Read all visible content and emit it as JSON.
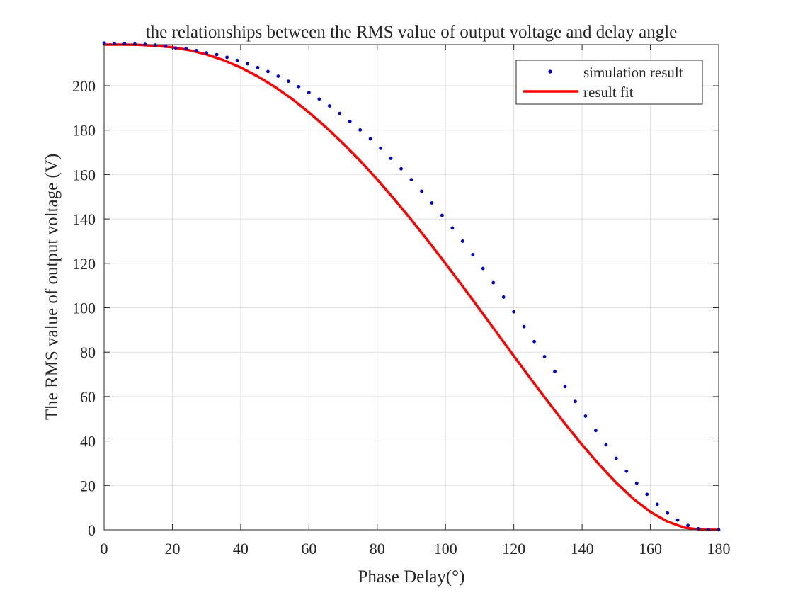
{
  "chart_data": {
    "type": "line",
    "title": "the relationships between the RMS value of output voltage and delay angle",
    "xlabel": "Phase Delay(°)",
    "ylabel": "The RMS value of output voltage (V)",
    "xlim": [
      0,
      180
    ],
    "ylim": [
      0,
      218.5
    ],
    "xticks": [
      0,
      20,
      40,
      60,
      80,
      100,
      120,
      140,
      160,
      180
    ],
    "yticks": [
      0,
      20,
      40,
      60,
      80,
      100,
      120,
      140,
      160,
      180,
      200
    ],
    "grid": true,
    "legend_position": "top-right",
    "series": [
      {
        "name": "simulation result",
        "style": "points",
        "color": "#0000cc",
        "x": [
          0,
          3,
          6,
          9,
          12,
          15,
          18,
          21,
          24,
          27,
          30,
          33,
          36,
          39,
          42,
          45,
          48,
          51,
          54,
          57,
          60,
          63,
          66,
          69,
          72,
          75,
          78,
          81,
          84,
          87,
          90,
          93,
          96,
          99,
          102,
          105,
          108,
          111,
          114,
          117,
          120,
          123,
          126,
          129,
          132,
          135,
          138,
          141,
          144,
          147,
          150,
          153,
          156,
          159,
          162,
          165,
          168,
          171,
          174,
          177,
          180
        ],
        "y": [
          219.2,
          219.0,
          218.9,
          218.8,
          218.6,
          218.3,
          217.8,
          217.0,
          216.7,
          215.8,
          214.8,
          214.0,
          212.8,
          211.4,
          209.9,
          208.2,
          206.4,
          204.3,
          202.0,
          199.6,
          196.9,
          194.0,
          190.9,
          187.5,
          183.9,
          180.1,
          176.1,
          171.8,
          167.3,
          162.6,
          157.7,
          152.5,
          147.2,
          141.6,
          135.9,
          130.0,
          123.9,
          117.7,
          111.3,
          104.8,
          98.2,
          91.5,
          84.8,
          78.0,
          71.3,
          64.5,
          57.8,
          51.2,
          44.7,
          38.3,
          32.2,
          26.4,
          21.0,
          16.0,
          11.5,
          7.6,
          4.4,
          2.0,
          0.5,
          0.1,
          0.0
        ]
      },
      {
        "name": "result fit",
        "style": "line",
        "color": "#ff0000",
        "x": [
          0,
          5,
          10,
          15,
          20,
          25,
          30,
          35,
          40,
          45,
          50,
          55,
          60,
          65,
          70,
          75,
          80,
          85,
          90,
          95,
          100,
          105,
          110,
          115,
          120,
          125,
          130,
          135,
          140,
          145,
          150,
          155,
          160,
          165,
          170,
          175,
          180
        ],
        "y": [
          218.5,
          218.5,
          218.4,
          218.0,
          217.3,
          216.0,
          214.1,
          211.5,
          208.2,
          204.2,
          199.5,
          194.1,
          188.0,
          181.3,
          174.0,
          166.2,
          157.8,
          148.9,
          139.6,
          129.9,
          119.9,
          109.7,
          99.3,
          88.8,
          78.3,
          67.9,
          57.7,
          47.8,
          38.3,
          29.4,
          21.2,
          14.0,
          8.1,
          3.7,
          1.0,
          0.1,
          0.0
        ]
      }
    ]
  }
}
